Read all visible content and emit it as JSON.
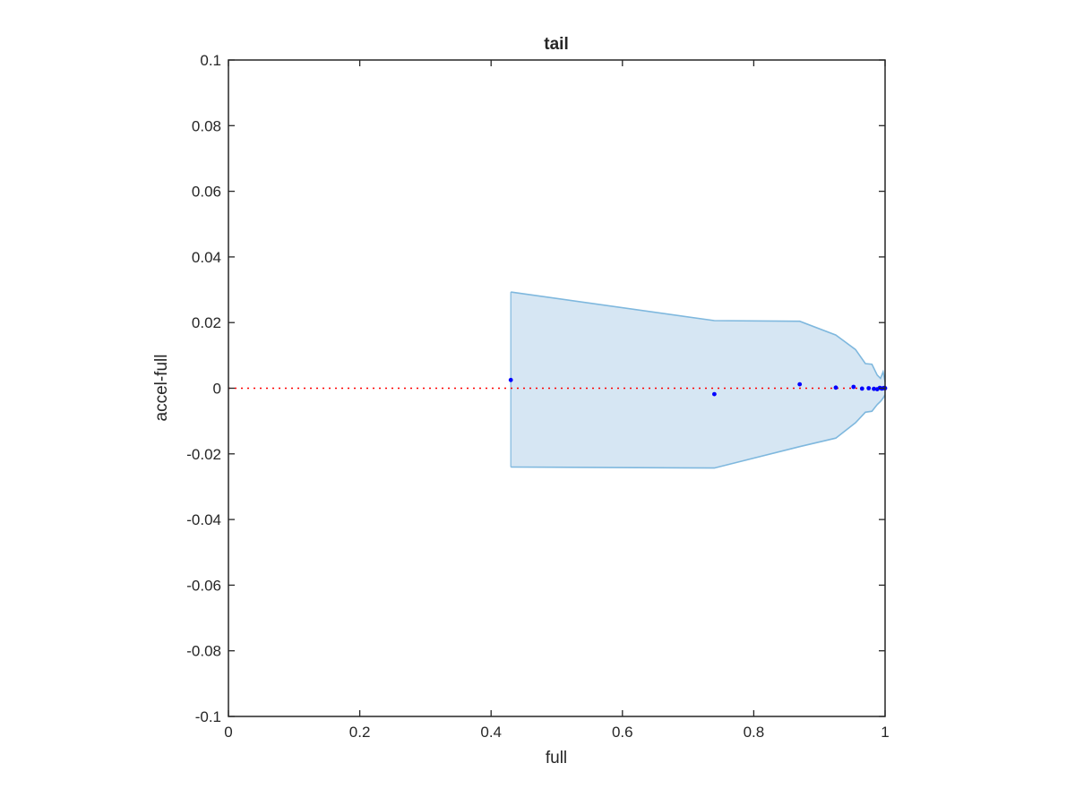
{
  "chart_data": {
    "type": "scatter",
    "title": "tail",
    "xlabel": "full",
    "ylabel": "accel-full",
    "xlim": [
      0,
      1
    ],
    "ylim": [
      -0.1,
      0.1
    ],
    "xticks": [
      0,
      0.2,
      0.4,
      0.6,
      0.8,
      1
    ],
    "xtick_labels": [
      "0",
      "0.2",
      "0.4",
      "0.6",
      "0.8",
      "1"
    ],
    "yticks": [
      -0.1,
      -0.08,
      -0.06,
      -0.04,
      -0.02,
      0,
      0.02,
      0.04,
      0.06,
      0.08,
      0.1
    ],
    "ytick_labels": [
      "-0.1",
      "-0.08",
      "-0.06",
      "-0.04",
      "-0.02",
      "0",
      "0.02",
      "0.04",
      "0.06",
      "0.08",
      "0.1"
    ],
    "grid": false,
    "colors": {
      "points": "#0000ff",
      "band_fill": "#d6e6f3",
      "band_edge": "#7fb8de",
      "reference_line": "#ff0000",
      "axes": "#262626"
    },
    "band": {
      "x": [
        0.43,
        0.74,
        0.87,
        0.925,
        0.955,
        0.97,
        0.98,
        0.988,
        0.993,
        0.997,
        1.0
      ],
      "upper": [
        0.0293,
        0.0206,
        0.0204,
        0.0162,
        0.0118,
        0.0075,
        0.0073,
        0.004,
        0.003,
        0.005,
        0.002
      ],
      "lower": [
        -0.024,
        -0.0243,
        -0.0178,
        -0.0152,
        -0.0105,
        -0.0073,
        -0.007,
        -0.005,
        -0.004,
        -0.003,
        -0.002
      ]
    },
    "points": {
      "x": [
        0.43,
        0.74,
        0.87,
        0.925,
        0.952,
        0.965,
        0.975,
        0.983,
        0.988,
        0.992,
        0.995,
        0.997,
        0.999,
        1.0
      ],
      "y": [
        0.0025,
        -0.0018,
        0.0012,
        0.0002,
        0.0004,
        -0.0001,
        0.0,
        -0.0002,
        -0.0003,
        0.0001,
        -0.0001,
        0.0,
        0.0001,
        0.0
      ]
    },
    "reference_line": {
      "y": 0,
      "style": "dotted"
    }
  }
}
